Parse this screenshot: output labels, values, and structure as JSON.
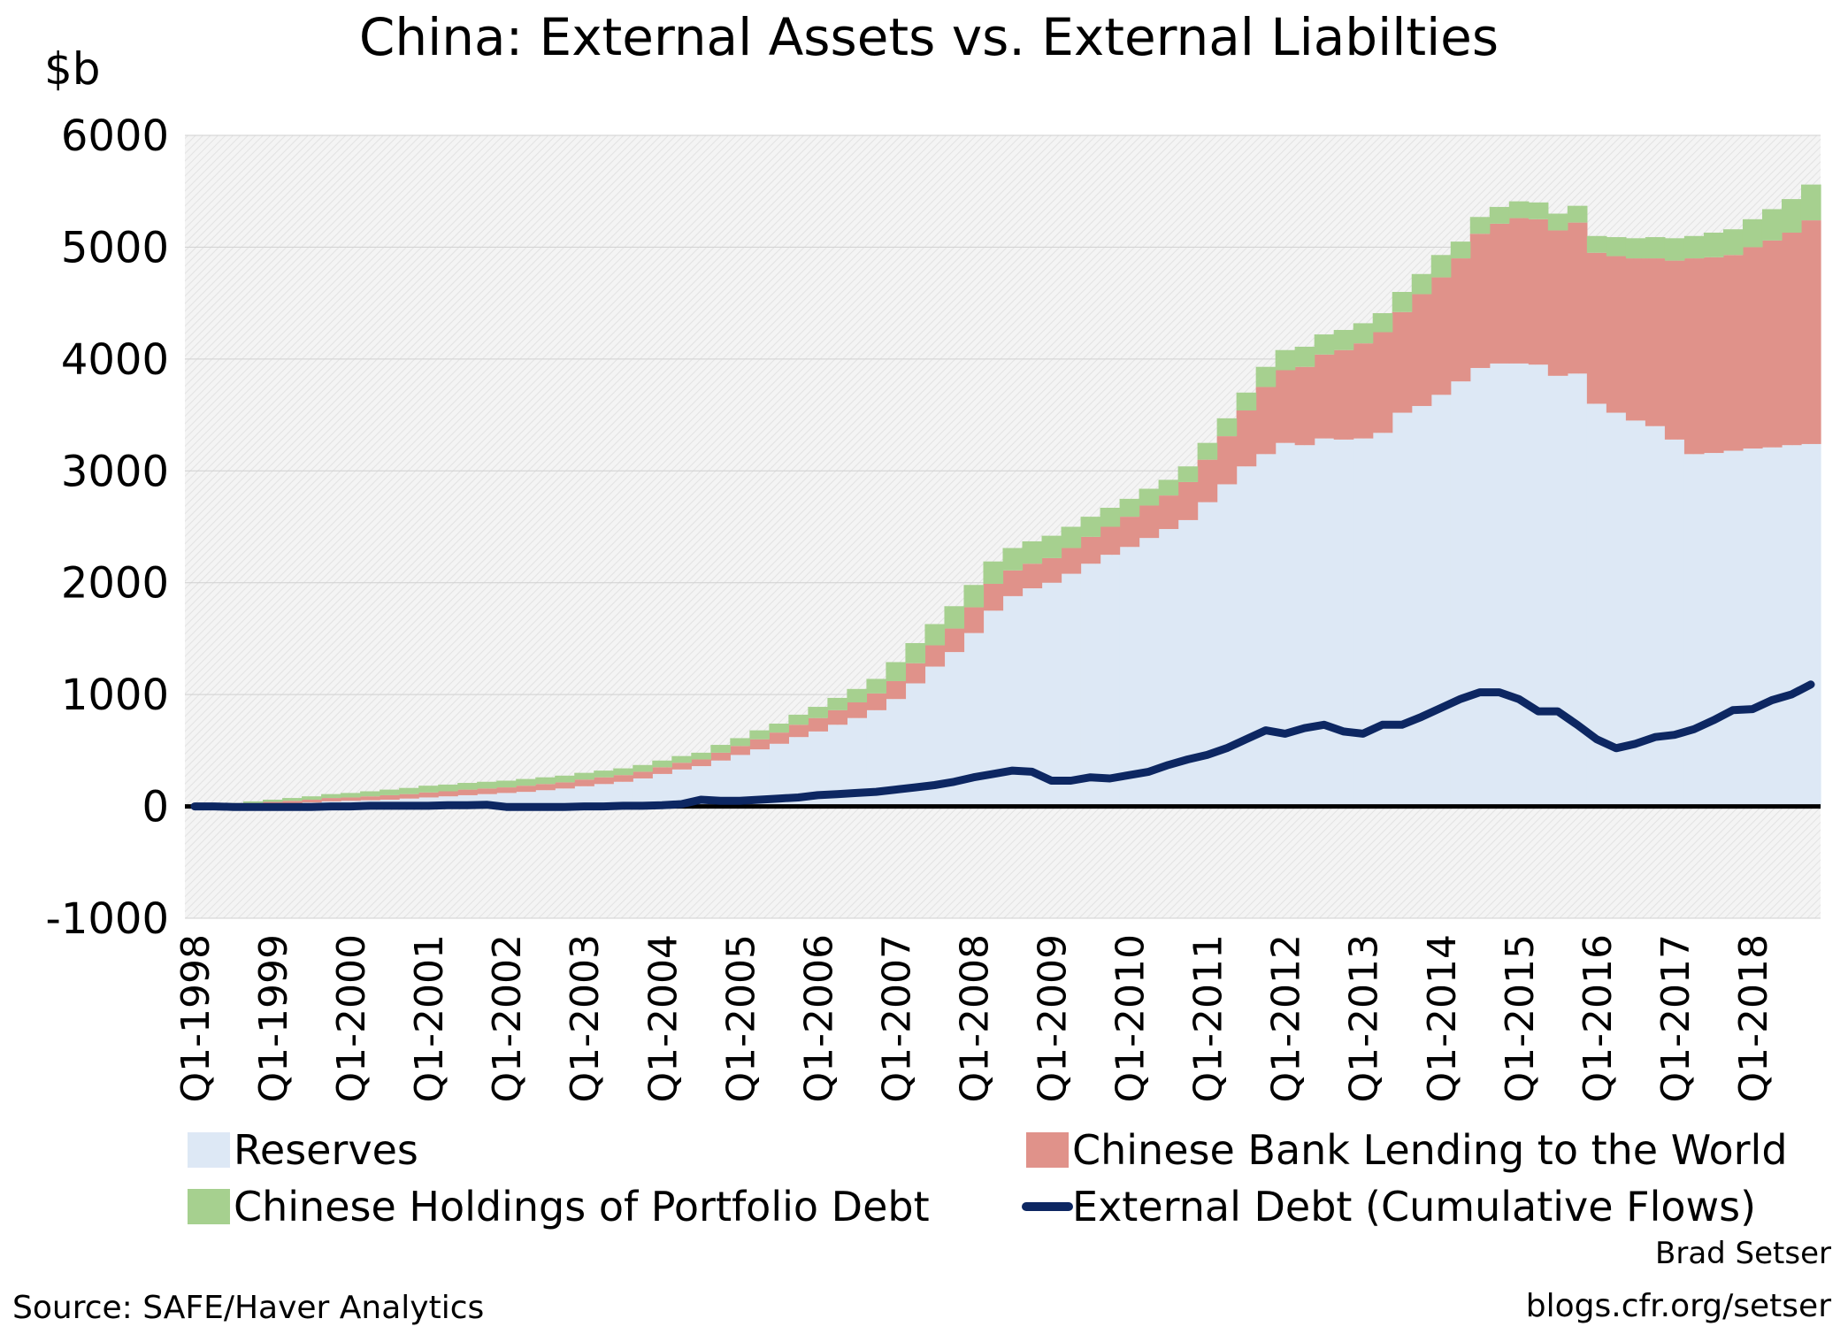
{
  "chart_data": {
    "type": "bar",
    "stacked": true,
    "title": "China: External Assets vs. External Liabilties",
    "y_label": "$b",
    "source": "Source: SAFE/Haver Analytics",
    "author": "Brad Setser",
    "website": "blogs.cfr.org/setser",
    "categories": [
      "Q1-1998",
      null,
      null,
      null,
      "Q1-1999",
      null,
      null,
      null,
      "Q1-2000",
      null,
      null,
      null,
      "Q1-2001",
      null,
      null,
      null,
      "Q1-2002",
      null,
      null,
      null,
      "Q1-2003",
      null,
      null,
      null,
      "Q1-2004",
      null,
      null,
      null,
      "Q1-2005",
      null,
      null,
      null,
      "Q1-2006",
      null,
      null,
      null,
      "Q1-2007",
      null,
      null,
      null,
      "Q1-2008",
      null,
      null,
      null,
      "Q1-2009",
      null,
      null,
      null,
      "Q1-2010",
      null,
      null,
      null,
      "Q1-2011",
      null,
      null,
      null,
      "Q1-2012",
      null,
      null,
      null,
      "Q1-2013",
      null,
      null,
      null,
      "Q1-2014",
      null,
      null,
      null,
      "Q1-2015",
      null,
      null,
      null,
      "Q1-2016",
      null,
      null,
      null,
      "Q1-2017",
      null,
      null,
      null,
      "Q1-2018",
      null,
      null,
      null
    ],
    "series": [
      {
        "name": "Reserves",
        "type": "bar",
        "color": "#dde8f5",
        "values": [
          0,
          5,
          10,
          15,
          20,
          25,
          35,
          45,
          50,
          55,
          60,
          70,
          80,
          90,
          100,
          110,
          120,
          130,
          145,
          160,
          180,
          200,
          220,
          250,
          290,
          330,
          360,
          410,
          460,
          510,
          560,
          620,
          670,
          730,
          790,
          860,
          960,
          1100,
          1250,
          1380,
          1550,
          1750,
          1880,
          1950,
          2000,
          2080,
          2170,
          2250,
          2320,
          2400,
          2480,
          2560,
          2720,
          2880,
          3040,
          3150,
          3250,
          3230,
          3290,
          3280,
          3290,
          3340,
          3520,
          3580,
          3680,
          3800,
          3920,
          3960,
          3960,
          3950,
          3850,
          3870,
          3600,
          3520,
          3450,
          3400,
          3280,
          3150,
          3160,
          3180,
          3200,
          3210,
          3230,
          3240
        ]
      },
      {
        "name": "Chinese Bank Lending to the World",
        "type": "bar",
        "color": "#e0928a",
        "values": [
          0,
          5,
          10,
          15,
          20,
          25,
          25,
          30,
          30,
          35,
          40,
          40,
          45,
          45,
          50,
          50,
          50,
          55,
          55,
          55,
          60,
          60,
          60,
          60,
          60,
          60,
          60,
          70,
          80,
          90,
          100,
          110,
          120,
          130,
          140,
          150,
          160,
          180,
          190,
          210,
          230,
          240,
          230,
          220,
          220,
          230,
          240,
          250,
          270,
          290,
          300,
          340,
          380,
          430,
          500,
          600,
          650,
          700,
          750,
          800,
          850,
          900,
          900,
          1000,
          1050,
          1100,
          1200,
          1250,
          1300,
          1300,
          1300,
          1350,
          1350,
          1400,
          1450,
          1500,
          1600,
          1750,
          1750,
          1750,
          1800,
          1850,
          1900,
          2000
        ]
      },
      {
        "name": "Chinese Holdings of Portfolio Debt",
        "type": "bar",
        "color": "#a6d08f",
        "values": [
          0,
          5,
          10,
          15,
          20,
          25,
          30,
          35,
          40,
          45,
          50,
          55,
          60,
          60,
          60,
          60,
          60,
          60,
          60,
          60,
          60,
          60,
          60,
          60,
          60,
          60,
          60,
          70,
          70,
          80,
          80,
          90,
          100,
          110,
          120,
          130,
          170,
          180,
          190,
          200,
          200,
          200,
          200,
          200,
          200,
          190,
          180,
          170,
          160,
          150,
          140,
          140,
          150,
          160,
          160,
          180,
          180,
          180,
          180,
          180,
          180,
          170,
          180,
          180,
          200,
          150,
          150,
          150,
          150,
          150,
          150,
          150,
          150,
          170,
          180,
          190,
          200,
          200,
          220,
          230,
          250,
          280,
          300,
          320
        ]
      },
      {
        "name": "External Debt (Cumulative Flows)",
        "type": "line",
        "color": "#0d2762",
        "values": [
          0,
          0,
          -5,
          -5,
          -5,
          -5,
          -5,
          0,
          0,
          5,
          5,
          5,
          5,
          10,
          10,
          15,
          -5,
          -5,
          -5,
          -5,
          0,
          0,
          5,
          5,
          10,
          20,
          60,
          50,
          50,
          60,
          70,
          80,
          100,
          110,
          120,
          130,
          150,
          170,
          190,
          220,
          260,
          290,
          320,
          310,
          230,
          230,
          260,
          250,
          280,
          310,
          370,
          420,
          460,
          520,
          600,
          680,
          650,
          700,
          730,
          670,
          650,
          730,
          730,
          800,
          880,
          960,
          1020,
          1020,
          960,
          850,
          850,
          730,
          600,
          520,
          560,
          620,
          640,
          690,
          770,
          860,
          870,
          950,
          1000,
          1090
        ]
      }
    ],
    "ylim": [
      -1000,
      6000
    ],
    "yticks": [
      -1000,
      0,
      1000,
      2000,
      3000,
      4000,
      5000,
      6000
    ],
    "zero_line": true
  }
}
